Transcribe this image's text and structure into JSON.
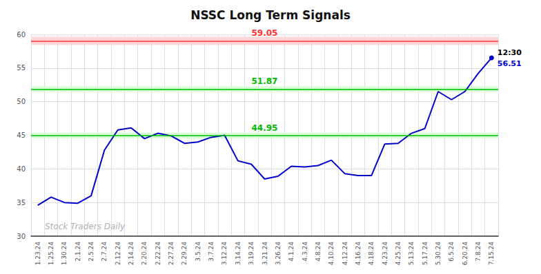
{
  "chart_data": {
    "type": "line",
    "title": "NSSC Long Term Signals",
    "categories": [
      "1.23.24",
      "1.25.24",
      "1.30.24",
      "2.1.24",
      "2.5.24",
      "2.7.24",
      "2.12.24",
      "2.14.24",
      "2.20.24",
      "2.22.24",
      "2.27.24",
      "2.29.24",
      "3.5.24",
      "3.7.24",
      "3.12.24",
      "3.14.24",
      "3.19.24",
      "3.21.24",
      "3.26.24",
      "4.1.24",
      "4.3.24",
      "4.8.24",
      "4.10.24",
      "4.12.24",
      "4.16.24",
      "4.18.24",
      "4.23.24",
      "4.25.24",
      "5.13.24",
      "5.17.24",
      "5.30.24",
      "6.5.24",
      "6.20.24",
      "7.8.24",
      "7.15.24"
    ],
    "values": [
      34.6,
      35.8,
      35.0,
      34.9,
      36.0,
      42.8,
      45.8,
      46.1,
      44.5,
      45.3,
      44.9,
      43.8,
      44.0,
      44.7,
      45.0,
      41.2,
      40.7,
      38.5,
      38.9,
      40.4,
      40.3,
      40.5,
      41.3,
      39.3,
      39.0,
      39.0,
      43.7,
      43.8,
      45.3,
      46.0,
      51.5,
      50.3,
      51.5,
      54.2,
      56.51
    ],
    "color": "#0000cc",
    "ylim": [
      30,
      60
    ],
    "yticks": [
      30,
      35,
      40,
      45,
      50,
      55,
      60
    ],
    "grid": true,
    "reference_lines": [
      {
        "value": 59.05,
        "label": "59.05",
        "color": "#ff3333",
        "band": [
          58.45,
          59.65
        ],
        "band_color": "#ffcccc"
      },
      {
        "value": 51.87,
        "label": "51.87",
        "color": "#00bb00",
        "band": [
          51.47,
          52.27
        ],
        "band_color": "#ccffcc"
      },
      {
        "value": 44.95,
        "label": "44.95",
        "color": "#00bb00",
        "band": [
          44.55,
          45.35
        ],
        "band_color": "#ccffcc"
      }
    ],
    "last_point_annotations": [
      "12:30",
      "56.51"
    ],
    "watermark": "Stock Traders Daily"
  }
}
